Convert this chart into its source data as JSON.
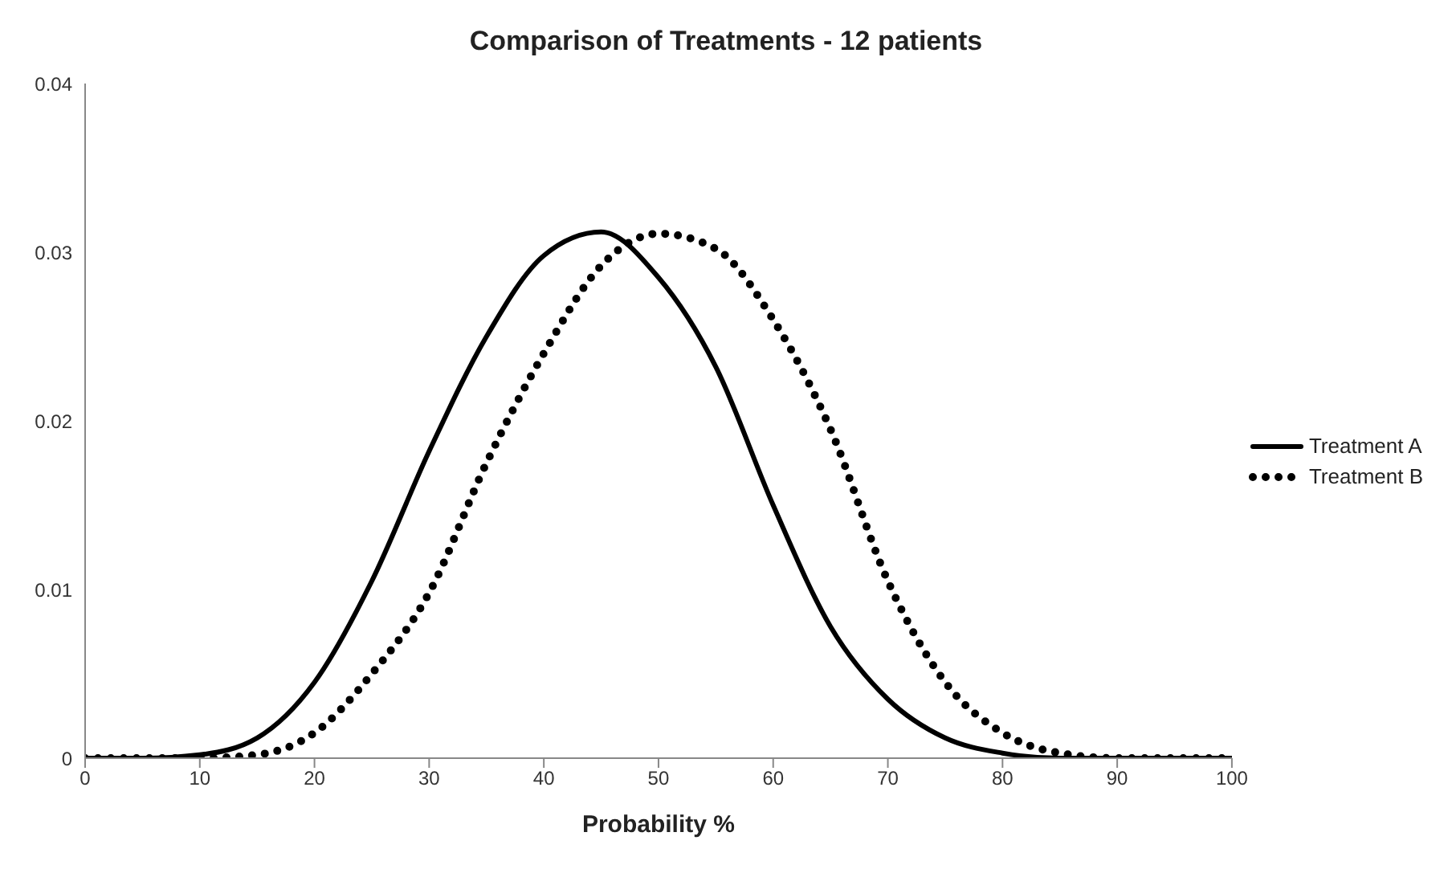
{
  "chart_data": {
    "type": "line",
    "title": "Comparison of Treatments - 12 patients",
    "xlabel": "Probability %",
    "x": [
      0,
      5,
      10,
      15,
      20,
      25,
      30,
      35,
      40,
      45,
      50,
      55,
      60,
      65,
      70,
      75,
      80,
      85,
      90,
      95,
      100
    ],
    "series": [
      {
        "name": "Treatment A",
        "color": "#000000",
        "line_style": "solid",
        "values": [
          0,
          0,
          0.0002,
          0.0012,
          0.0045,
          0.0105,
          0.0182,
          0.025,
          0.0298,
          0.0312,
          0.0285,
          0.0232,
          0.015,
          0.0078,
          0.0035,
          0.0012,
          0.0003,
          0,
          0,
          0,
          0
        ]
      },
      {
        "name": "Treatment B",
        "color": "#000000",
        "line_style": "dotted",
        "values": [
          0,
          0,
          0,
          0.0002,
          0.0015,
          0.005,
          0.0098,
          0.0175,
          0.024,
          0.0292,
          0.0311,
          0.0302,
          0.026,
          0.0195,
          0.0105,
          0.0045,
          0.0015,
          0.0003,
          0,
          0,
          0
        ]
      }
    ],
    "xlim": [
      0,
      100
    ],
    "xticks": [
      0,
      10,
      20,
      30,
      40,
      50,
      60,
      70,
      80,
      90,
      100
    ],
    "ylim": [
      0,
      0.04
    ],
    "yticks": [
      0,
      0.01,
      0.02,
      0.03,
      0.04
    ],
    "grid": false,
    "legend": "right",
    "marker": "none"
  }
}
